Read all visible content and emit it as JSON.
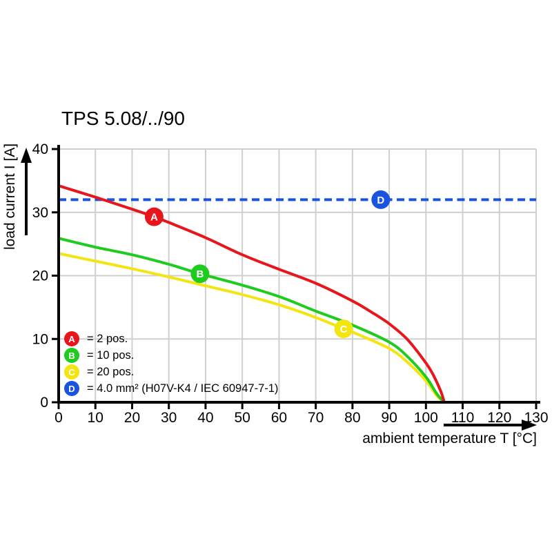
{
  "colors": {
    "red": "#e8151d",
    "green": "#1ecb1e",
    "yellow": "#f2e512",
    "blue": "#1a53e0",
    "grid": "#cfcfcf",
    "axis": "#000000",
    "background": "#ffffff",
    "text": "#000000",
    "marker_label": "#ffffff"
  },
  "chart_data": {
    "type": "line",
    "title": "TPS 5.08/../90",
    "xlabel": "ambient temperature T [°C]",
    "ylabel": "load current I [A]",
    "xlim": [
      0,
      130
    ],
    "ylim": [
      0,
      40
    ],
    "xticks": [
      0,
      10,
      20,
      30,
      40,
      50,
      60,
      70,
      80,
      90,
      100,
      110,
      120,
      130
    ],
    "yticks": [
      0,
      10,
      20,
      30,
      40
    ],
    "grid": true,
    "legend_position": "bottom-left-inside",
    "series": [
      {
        "name": "A",
        "label": "= 2 pos.",
        "color_key": "red",
        "style": "solid",
        "marker": {
          "letter": "A",
          "x": 26,
          "y": 29.3
        },
        "points": [
          [
            0,
            34.2
          ],
          [
            10,
            32.4
          ],
          [
            20,
            30.5
          ],
          [
            26,
            29.3
          ],
          [
            30,
            28.4
          ],
          [
            40,
            26.0
          ],
          [
            50,
            23.3
          ],
          [
            60,
            21.0
          ],
          [
            70,
            18.8
          ],
          [
            80,
            16.0
          ],
          [
            85,
            14.3
          ],
          [
            90,
            12.4
          ],
          [
            95,
            9.9
          ],
          [
            100,
            6.2
          ],
          [
            102,
            4.3
          ],
          [
            104,
            1.8
          ],
          [
            105,
            0
          ]
        ]
      },
      {
        "name": "B",
        "label": "= 10 pos.",
        "color_key": "green",
        "style": "solid",
        "marker": {
          "letter": "B",
          "x": 38.5,
          "y": 20.3
        },
        "points": [
          [
            0,
            25.9
          ],
          [
            10,
            24.5
          ],
          [
            20,
            23.3
          ],
          [
            30,
            21.8
          ],
          [
            38.5,
            20.3
          ],
          [
            50,
            18.5
          ],
          [
            60,
            16.7
          ],
          [
            70,
            14.4
          ],
          [
            80,
            12.2
          ],
          [
            90,
            9.5
          ],
          [
            95,
            7.2
          ],
          [
            100,
            4.0
          ],
          [
            103,
            1.3
          ],
          [
            105,
            0
          ]
        ]
      },
      {
        "name": "C",
        "label": "= 20 pos.",
        "color_key": "yellow",
        "style": "solid",
        "marker": {
          "letter": "C",
          "x": 77.6,
          "y": 11.6
        },
        "points": [
          [
            0,
            23.5
          ],
          [
            10,
            22.3
          ],
          [
            20,
            21.1
          ],
          [
            30,
            19.8
          ],
          [
            40,
            18.4
          ],
          [
            50,
            17.0
          ],
          [
            60,
            15.4
          ],
          [
            70,
            13.4
          ],
          [
            77.6,
            11.6
          ],
          [
            80,
            11.1
          ],
          [
            90,
            8.5
          ],
          [
            95,
            6.3
          ],
          [
            100,
            3.4
          ],
          [
            103,
            1.0
          ],
          [
            105,
            0
          ]
        ]
      },
      {
        "name": "D",
        "label": "= 4.0 mm² (H07V-K4 / IEC 60947-7-1)",
        "color_key": "blue",
        "style": "dashed",
        "marker": {
          "letter": "D",
          "x": 87.7,
          "y": 32
        },
        "points": [
          [
            0,
            32
          ],
          [
            130,
            32
          ]
        ]
      }
    ]
  }
}
